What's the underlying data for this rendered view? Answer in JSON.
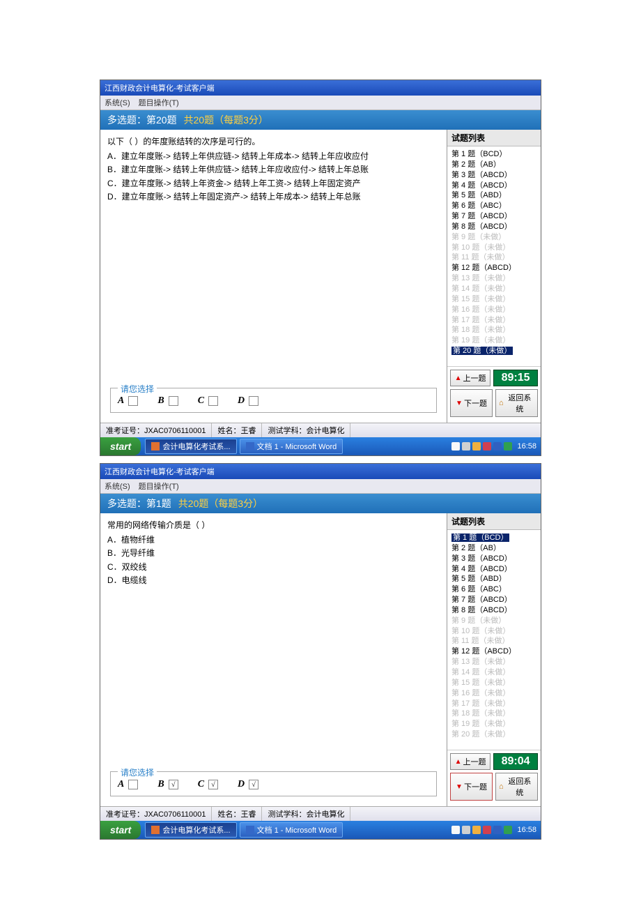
{
  "screens": [
    {
      "title": "江西财政会计电算化-考试客户端",
      "menu": [
        "系统(S)",
        "题目操作(T)"
      ],
      "qheader_prefix": "多选题：",
      "qheader_current": "第20题",
      "qheader_total": "共20题（每题3分）",
      "stem": "以下（  ）的年度账结转的次序是可行的。",
      "options": [
        "A．建立年度账-> 结转上年供应链-> 结转上年成本-> 结转上年应收应付",
        "B．建立年度账-> 结转上年供应链-> 结转上年应收应付-> 结转上年总账",
        "C．建立年度账-> 结转上年资金-> 结转上年工资-> 结转上年固定资产",
        "D．建立年度账-> 结转上年固定资产-> 结转上年成本-> 结转上年总账"
      ],
      "answer_label": "请您选择",
      "choices": [
        {
          "label": "A",
          "checked": false
        },
        {
          "label": "B",
          "checked": false
        },
        {
          "label": "C",
          "checked": false
        },
        {
          "label": "D",
          "checked": false
        }
      ],
      "side_title": "试题列表",
      "qlist": [
        {
          "n": 1,
          "ans": "BCD",
          "done": true
        },
        {
          "n": 2,
          "ans": "AB",
          "done": true
        },
        {
          "n": 3,
          "ans": "ABCD",
          "done": true
        },
        {
          "n": 4,
          "ans": "ABCD",
          "done": true
        },
        {
          "n": 5,
          "ans": "ABD",
          "done": true
        },
        {
          "n": 6,
          "ans": "ABC",
          "done": true
        },
        {
          "n": 7,
          "ans": "ABCD",
          "done": true
        },
        {
          "n": 8,
          "ans": "ABCD",
          "done": true
        },
        {
          "n": 9,
          "ans": "未做",
          "done": false
        },
        {
          "n": 10,
          "ans": "未做",
          "done": false
        },
        {
          "n": 11,
          "ans": "未做",
          "done": false
        },
        {
          "n": 12,
          "ans": "ABCD",
          "done": true
        },
        {
          "n": 13,
          "ans": "未做",
          "done": false
        },
        {
          "n": 14,
          "ans": "未做",
          "done": false
        },
        {
          "n": 15,
          "ans": "未做",
          "done": false
        },
        {
          "n": 16,
          "ans": "未做",
          "done": false
        },
        {
          "n": 17,
          "ans": "未做",
          "done": false
        },
        {
          "n": 18,
          "ans": "未做",
          "done": false
        },
        {
          "n": 19,
          "ans": "未做",
          "done": false
        },
        {
          "n": 20,
          "ans": "未做",
          "done": false,
          "selected": true
        }
      ],
      "timer": "89:15",
      "prev": "上一题",
      "next": "下一题",
      "back": "返回系统",
      "next_highlight": false,
      "status": [
        "准考证号：JXAC0706110001",
        "姓名：王睿",
        "测试学科：会计电算化"
      ],
      "task_items": [
        {
          "label": "会计电算化考试系...",
          "active": true,
          "icon": "#e07030"
        },
        {
          "label": "文档 1 - Microsoft Word",
          "active": false,
          "icon": "#3468c8"
        }
      ],
      "clock": "16:58"
    },
    {
      "title": "江西财政会计电算化-考试客户端",
      "menu": [
        "系统(S)",
        "题目操作(T)"
      ],
      "qheader_prefix": "多选题：",
      "qheader_current": "第1题",
      "qheader_total": "共20题（每题3分）",
      "stem": "常用的网络传输介质是（  ）",
      "options": [
        "A．植物纤维",
        "B．光导纤维",
        "C．双绞线",
        "D．电缆线"
      ],
      "answer_label": "请您选择",
      "choices": [
        {
          "label": "A",
          "checked": false
        },
        {
          "label": "B",
          "checked": true
        },
        {
          "label": "C",
          "checked": true
        },
        {
          "label": "D",
          "checked": true
        }
      ],
      "side_title": "试题列表",
      "qlist": [
        {
          "n": 1,
          "ans": "BCD",
          "done": true,
          "selected": true
        },
        {
          "n": 2,
          "ans": "AB",
          "done": true
        },
        {
          "n": 3,
          "ans": "ABCD",
          "done": true
        },
        {
          "n": 4,
          "ans": "ABCD",
          "done": true
        },
        {
          "n": 5,
          "ans": "ABD",
          "done": true
        },
        {
          "n": 6,
          "ans": "ABC",
          "done": true
        },
        {
          "n": 7,
          "ans": "ABCD",
          "done": true
        },
        {
          "n": 8,
          "ans": "ABCD",
          "done": true
        },
        {
          "n": 9,
          "ans": "未做",
          "done": false
        },
        {
          "n": 10,
          "ans": "未做",
          "done": false
        },
        {
          "n": 11,
          "ans": "未做",
          "done": false
        },
        {
          "n": 12,
          "ans": "ABCD",
          "done": true
        },
        {
          "n": 13,
          "ans": "未做",
          "done": false
        },
        {
          "n": 14,
          "ans": "未做",
          "done": false
        },
        {
          "n": 15,
          "ans": "未做",
          "done": false
        },
        {
          "n": 16,
          "ans": "未做",
          "done": false
        },
        {
          "n": 17,
          "ans": "未做",
          "done": false
        },
        {
          "n": 18,
          "ans": "未做",
          "done": false
        },
        {
          "n": 19,
          "ans": "未做",
          "done": false
        },
        {
          "n": 20,
          "ans": "未做",
          "done": false
        }
      ],
      "timer": "89:04",
      "prev": "上一题",
      "next": "下一题",
      "back": "返回系统",
      "next_highlight": true,
      "status": [
        "准考证号：JXAC0706110001",
        "姓名：王睿",
        "测试学科：会计电算化"
      ],
      "task_items": [
        {
          "label": "会计电算化考试系...",
          "active": true,
          "icon": "#e07030"
        },
        {
          "label": "文档 1 - Microsoft Word",
          "active": false,
          "icon": "#3468c8"
        }
      ],
      "clock": "16:58"
    }
  ],
  "start_label": "start",
  "tray_icons": [
    "#f8f8f8",
    "#d0d0d0",
    "#f0b040",
    "#d04050",
    "#3060c0",
    "#30a050"
  ]
}
